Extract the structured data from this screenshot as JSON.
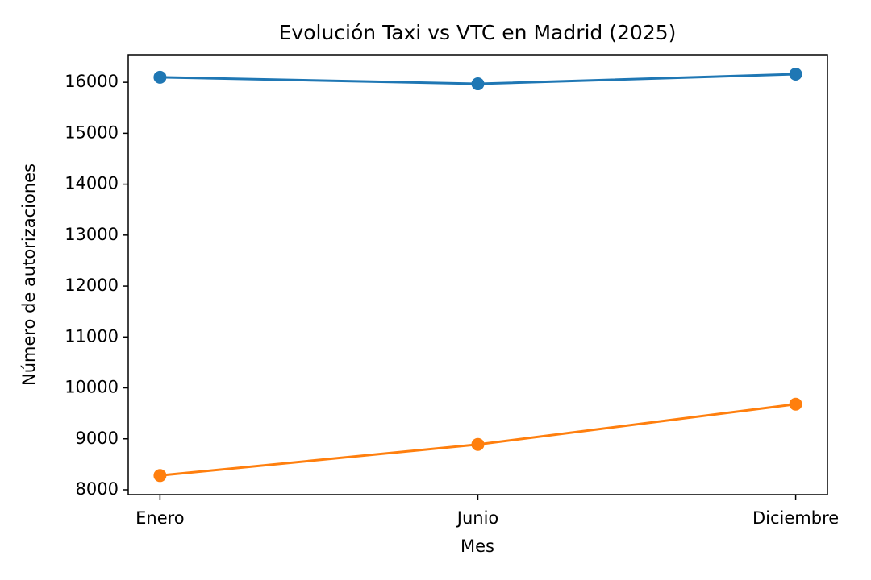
{
  "chart_data": {
    "type": "line",
    "title": "Evolución Taxi vs VTC en Madrid (2025)",
    "x_label": "Mes",
    "y_label": "Número de autorizaciones",
    "categories": [
      "Enero",
      "Junio",
      "Diciembre"
    ],
    "series": [
      {
        "color": "#1f77b4",
        "values": [
          16100,
          15970,
          16160
        ]
      },
      {
        "color": "#ff7f0e",
        "values": [
          8280,
          8890,
          9680
        ]
      }
    ],
    "ylim": [
      7905,
      16540
    ],
    "yticks": [
      8000,
      9000,
      10000,
      11000,
      12000,
      13000,
      14000,
      15000,
      16000
    ],
    "grid": false
  }
}
